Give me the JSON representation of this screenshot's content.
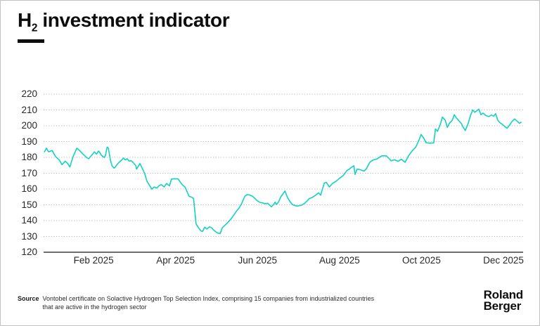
{
  "header": {
    "title_main": "H",
    "title_sub": "2",
    "title_rest": " investment indicator"
  },
  "footer": {
    "source_label": "Source",
    "source_line1": "Vontobel certificate on Solactive Hydrogen Top Selection Index, comprising 15 companies from industrialized countries",
    "source_line2": "that are active in the hydrogen sector",
    "logo_line1": "Roland",
    "logo_line2": "Berger"
  },
  "colors": {
    "line": "#12D2C0",
    "grid": "#b5b5b5",
    "axis": "#6e6e6e",
    "text": "#111111"
  },
  "chart_data": {
    "type": "line",
    "title": "H2 investment indicator",
    "series_name": "H2 investment indicator (index level)",
    "x_unit": "months, 1.0 = Feb 2025 tick, 11.0 = Dec 2025 tick",
    "xlim": [
      -0.22,
      11.48
    ],
    "ylim": [
      120,
      220
    ],
    "y_ticks": [
      120,
      130,
      140,
      150,
      160,
      170,
      180,
      190,
      200,
      210,
      220
    ],
    "x_ticks": [
      {
        "m": 1,
        "label": "Feb 2025"
      },
      {
        "m": 3,
        "label": "Apr 2025"
      },
      {
        "m": 5,
        "label": "Jun 2025"
      },
      {
        "m": 7,
        "label": "Aug 2025"
      },
      {
        "m": 9,
        "label": "Oct 2025"
      },
      {
        "m": 11,
        "label": "Dec 2025"
      }
    ],
    "grid": "horizontal-dotted",
    "legend": "none",
    "points": [
      [
        -0.2,
        183.5
      ],
      [
        -0.15,
        185.8
      ],
      [
        -0.1,
        183.5
      ],
      [
        -0.01,
        184.3
      ],
      [
        0.07,
        180.6
      ],
      [
        0.16,
        178.4
      ],
      [
        0.23,
        175.4
      ],
      [
        0.31,
        177.6
      ],
      [
        0.37,
        176.1
      ],
      [
        0.42,
        173.9
      ],
      [
        0.5,
        180.6
      ],
      [
        0.59,
        185.8
      ],
      [
        0.66,
        184.3
      ],
      [
        0.74,
        182.1
      ],
      [
        0.83,
        179.9
      ],
      [
        0.88,
        179.1
      ],
      [
        0.95,
        181.3
      ],
      [
        1.02,
        183.5
      ],
      [
        1.07,
        182.1
      ],
      [
        1.12,
        184.0
      ],
      [
        1.16,
        182.8
      ],
      [
        1.19,
        181.3
      ],
      [
        1.26,
        179.9
      ],
      [
        1.29,
        181.3
      ],
      [
        1.33,
        186.5
      ],
      [
        1.36,
        185.8
      ],
      [
        1.41,
        178.4
      ],
      [
        1.45,
        174.7
      ],
      [
        1.5,
        173.2
      ],
      [
        1.53,
        173.9
      ],
      [
        1.57,
        175.4
      ],
      [
        1.62,
        176.9
      ],
      [
        1.69,
        178.4
      ],
      [
        1.73,
        179.6
      ],
      [
        1.77,
        178.4
      ],
      [
        1.82,
        179.1
      ],
      [
        1.87,
        177.6
      ],
      [
        1.91,
        178.0
      ],
      [
        1.96,
        176.9
      ],
      [
        2.03,
        174.7
      ],
      [
        2.05,
        172.6
      ],
      [
        2.08,
        173.9
      ],
      [
        2.13,
        176.1
      ],
      [
        2.2,
        172.4
      ],
      [
        2.25,
        169.5
      ],
      [
        2.3,
        165.0
      ],
      [
        2.37,
        162.1
      ],
      [
        2.42,
        159.9
      ],
      [
        2.48,
        161.3
      ],
      [
        2.54,
        160.6
      ],
      [
        2.6,
        162.1
      ],
      [
        2.65,
        162.8
      ],
      [
        2.72,
        161.3
      ],
      [
        2.78,
        163.5
      ],
      [
        2.85,
        162.0
      ],
      [
        2.9,
        166.3
      ],
      [
        2.99,
        166.5
      ],
      [
        3.06,
        166.4
      ],
      [
        3.16,
        162.8
      ],
      [
        3.23,
        161.3
      ],
      [
        3.33,
        155.4
      ],
      [
        3.4,
        154.7
      ],
      [
        3.44,
        154.0
      ],
      [
        3.47,
        146.0
      ],
      [
        3.5,
        138.0
      ],
      [
        3.56,
        135.4
      ],
      [
        3.62,
        133.5
      ],
      [
        3.66,
        133.2
      ],
      [
        3.71,
        135.8
      ],
      [
        3.76,
        134.7
      ],
      [
        3.83,
        136.1
      ],
      [
        3.88,
        135.4
      ],
      [
        3.93,
        134.0
      ],
      [
        3.97,
        133.2
      ],
      [
        4.02,
        132.2
      ],
      [
        4.09,
        131.8
      ],
      [
        4.14,
        135.4
      ],
      [
        4.26,
        138.4
      ],
      [
        4.36,
        141.3
      ],
      [
        4.48,
        145.8
      ],
      [
        4.55,
        148.0
      ],
      [
        4.6,
        150.2
      ],
      [
        4.69,
        155.4
      ],
      [
        4.74,
        156.4
      ],
      [
        4.81,
        156.2
      ],
      [
        4.88,
        155.4
      ],
      [
        5.0,
        152.4
      ],
      [
        5.06,
        151.5
      ],
      [
        5.12,
        151.2
      ],
      [
        5.18,
        150.7
      ],
      [
        5.25,
        151.0
      ],
      [
        5.31,
        149.5
      ],
      [
        5.34,
        148.7
      ],
      [
        5.39,
        150.2
      ],
      [
        5.43,
        151.7
      ],
      [
        5.46,
        150.2
      ],
      [
        5.51,
        151.7
      ],
      [
        5.56,
        154.7
      ],
      [
        5.67,
        158.7
      ],
      [
        5.73,
        154.7
      ],
      [
        5.8,
        151.7
      ],
      [
        5.85,
        150.2
      ],
      [
        5.91,
        149.5
      ],
      [
        5.97,
        149.2
      ],
      [
        6.03,
        149.5
      ],
      [
        6.08,
        149.8
      ],
      [
        6.15,
        151.0
      ],
      [
        6.21,
        152.4
      ],
      [
        6.26,
        153.9
      ],
      [
        6.32,
        154.5
      ],
      [
        6.42,
        156.1
      ],
      [
        6.49,
        157.6
      ],
      [
        6.54,
        156.1
      ],
      [
        6.63,
        163.8
      ],
      [
        6.68,
        164.2
      ],
      [
        6.75,
        161.3
      ],
      [
        6.83,
        163.5
      ],
      [
        6.92,
        165.0
      ],
      [
        7.0,
        166.8
      ],
      [
        7.09,
        168.5
      ],
      [
        7.18,
        171.7
      ],
      [
        7.23,
        172.4
      ],
      [
        7.28,
        173.5
      ],
      [
        7.35,
        174.7
      ],
      [
        7.38,
        169.2
      ],
      [
        7.43,
        172.6
      ],
      [
        7.48,
        172.4
      ],
      [
        7.55,
        171.8
      ],
      [
        7.6,
        171.3
      ],
      [
        7.66,
        173.0
      ],
      [
        7.74,
        177.0
      ],
      [
        7.83,
        178.5
      ],
      [
        7.91,
        179.0
      ],
      [
        8.03,
        181.0
      ],
      [
        8.14,
        181.0
      ],
      [
        8.2,
        179.5
      ],
      [
        8.26,
        177.8
      ],
      [
        8.34,
        178.5
      ],
      [
        8.43,
        177.5
      ],
      [
        8.51,
        178.8
      ],
      [
        8.6,
        176.9
      ],
      [
        8.69,
        181.3
      ],
      [
        8.77,
        184.0
      ],
      [
        8.86,
        186.5
      ],
      [
        8.94,
        191.0
      ],
      [
        8.99,
        194.5
      ],
      [
        9.06,
        192.0
      ],
      [
        9.11,
        189.3
      ],
      [
        9.2,
        189.0
      ],
      [
        9.3,
        189.2
      ],
      [
        9.34,
        198.0
      ],
      [
        9.39,
        196.5
      ],
      [
        9.46,
        201.0
      ],
      [
        9.51,
        205.5
      ],
      [
        9.58,
        203.5
      ],
      [
        9.63,
        199.0
      ],
      [
        9.68,
        201.5
      ],
      [
        9.75,
        203.5
      ],
      [
        9.8,
        207.0
      ],
      [
        9.85,
        205.0
      ],
      [
        9.92,
        203.0
      ],
      [
        9.97,
        201.5
      ],
      [
        10.02,
        199.0
      ],
      [
        10.07,
        197.0
      ],
      [
        10.14,
        201.5
      ],
      [
        10.19,
        206.0
      ],
      [
        10.25,
        210.0
      ],
      [
        10.3,
        208.5
      ],
      [
        10.35,
        209.5
      ],
      [
        10.4,
        210.5
      ],
      [
        10.45,
        207.0
      ],
      [
        10.5,
        208.0
      ],
      [
        10.57,
        206.5
      ],
      [
        10.64,
        205.8
      ],
      [
        10.71,
        206.8
      ],
      [
        10.76,
        206.0
      ],
      [
        10.81,
        207.7
      ],
      [
        10.86,
        203.5
      ],
      [
        10.91,
        202.0
      ],
      [
        10.97,
        201.0
      ],
      [
        11.03,
        199.5
      ],
      [
        11.09,
        198.5
      ],
      [
        11.15,
        200.5
      ],
      [
        11.21,
        202.8
      ],
      [
        11.27,
        204.3
      ],
      [
        11.34,
        202.8
      ],
      [
        11.39,
        201.5
      ],
      [
        11.43,
        202.2
      ]
    ]
  }
}
